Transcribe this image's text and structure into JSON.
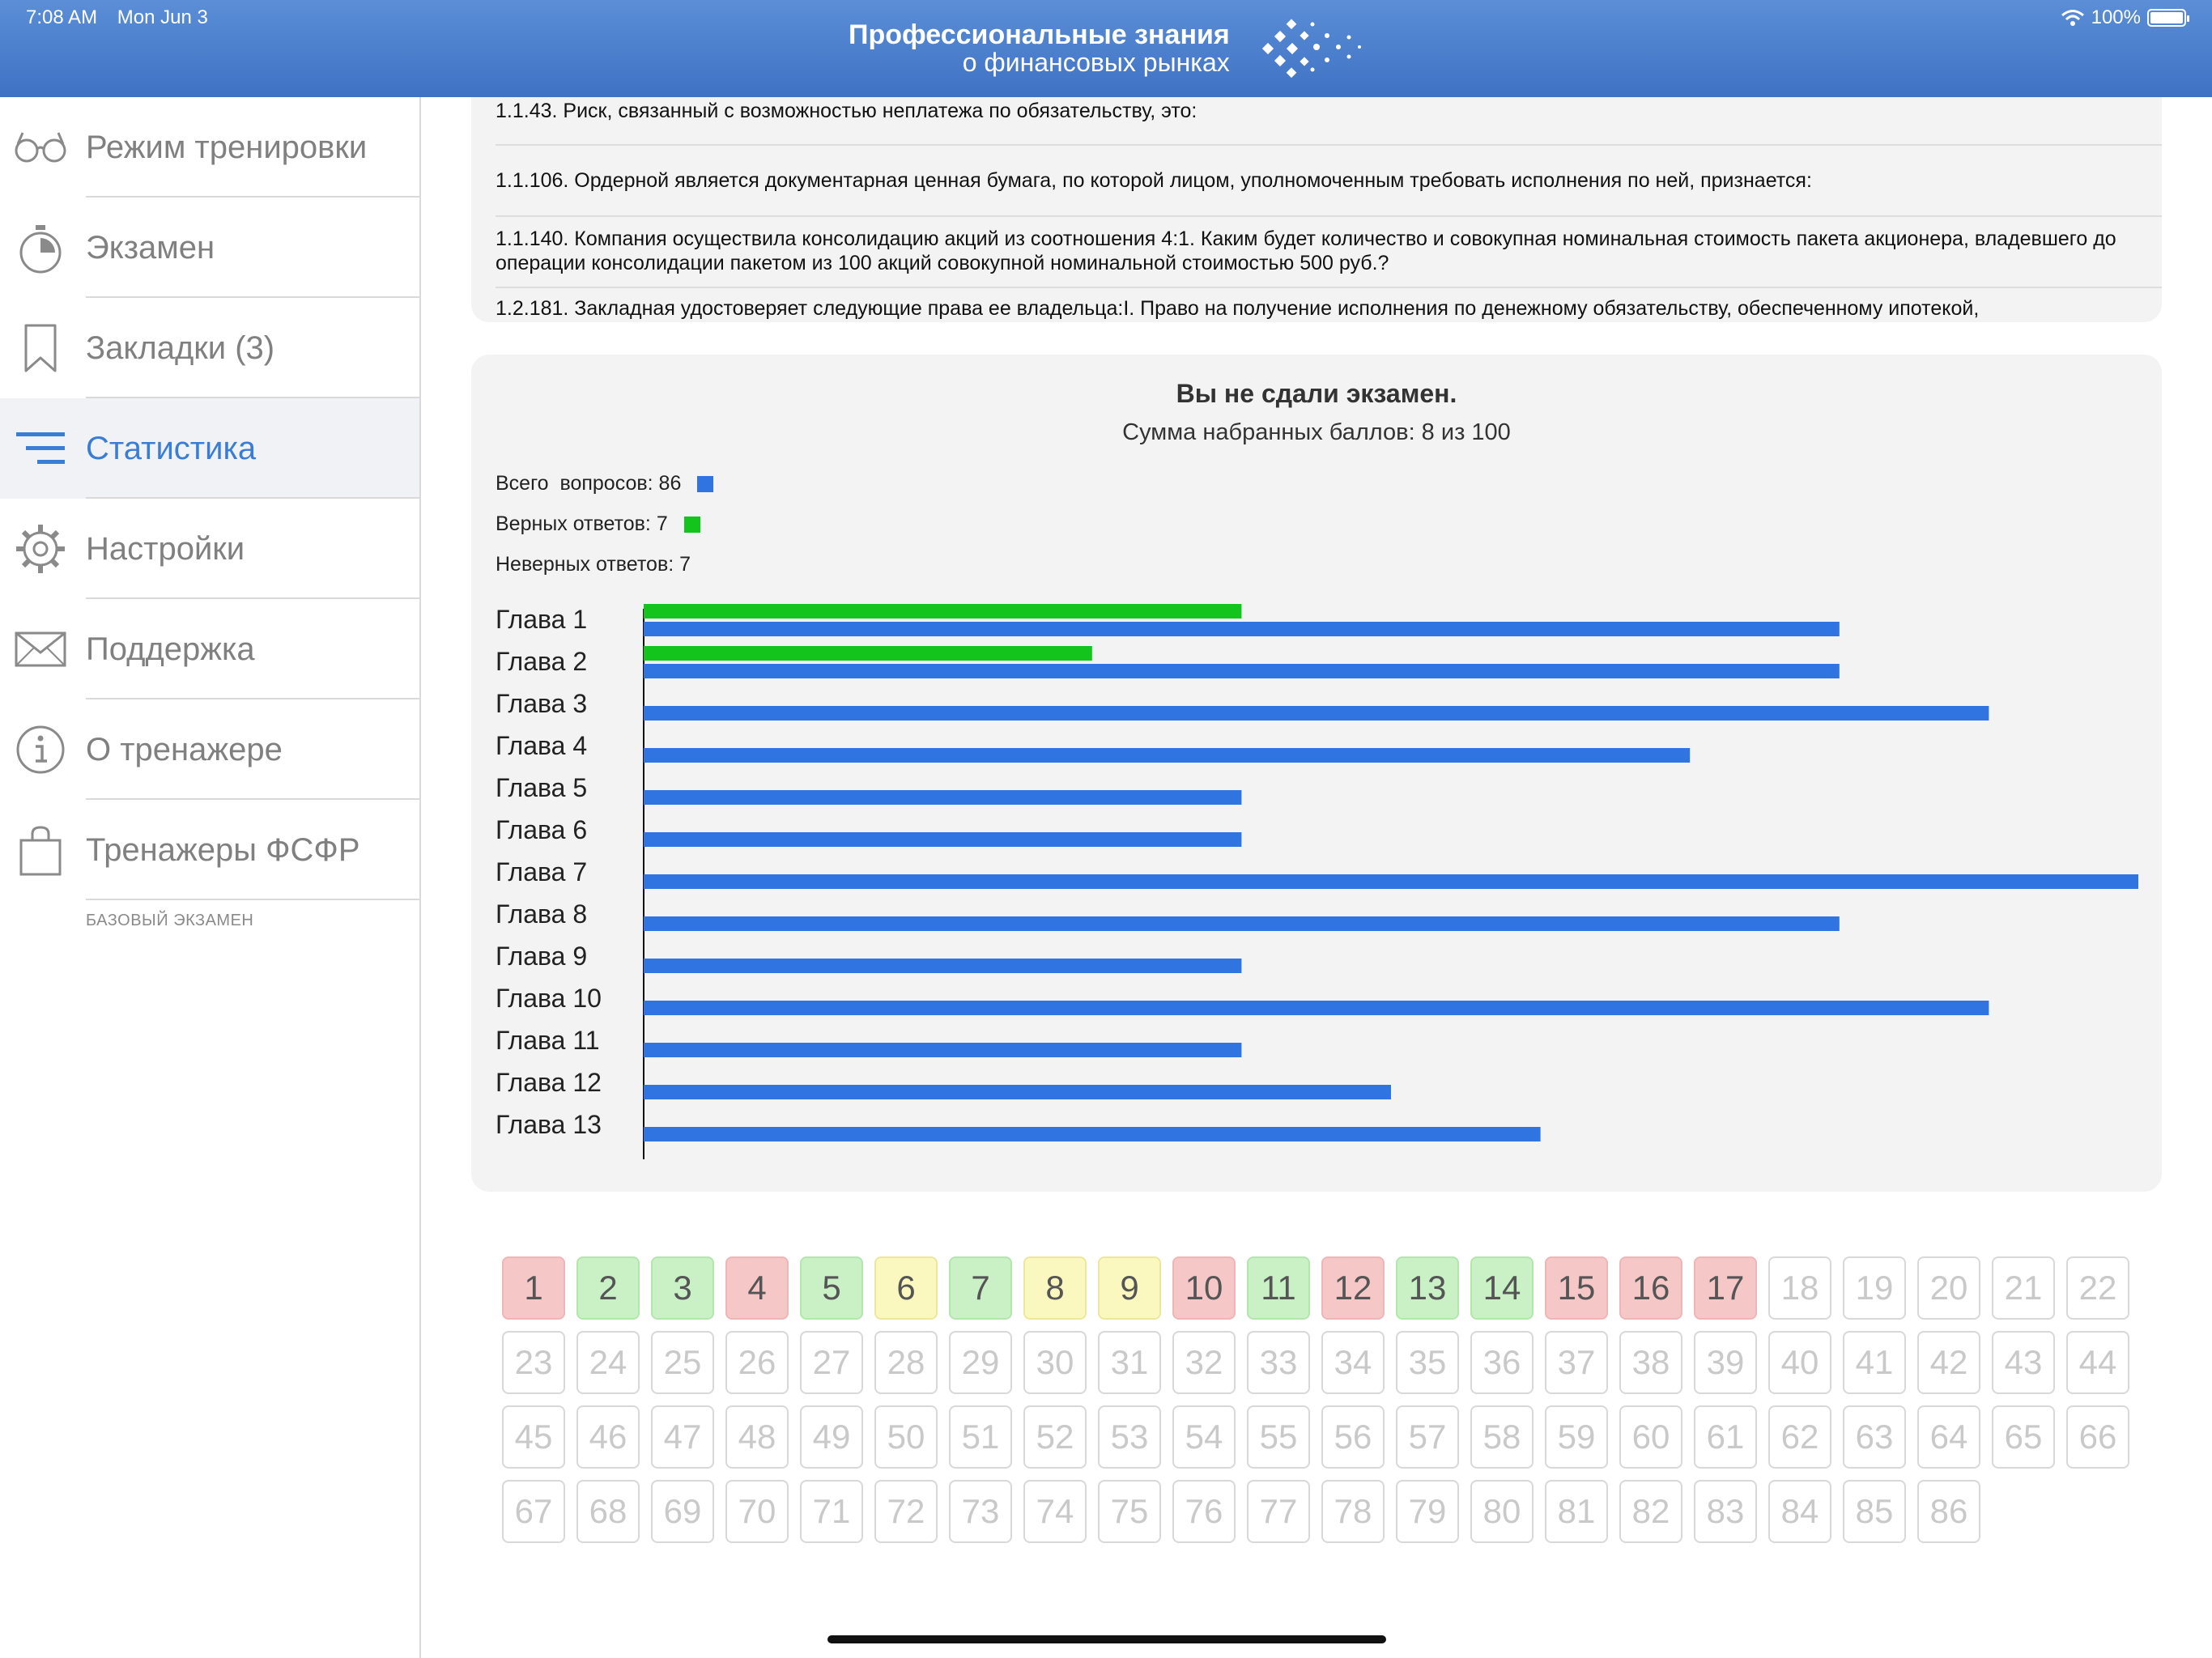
{
  "status_bar": {
    "time": "7:08 AM",
    "date": "Mon Jun 3",
    "battery": "100%"
  },
  "header": {
    "logo_line1": "Профессиональные знания",
    "logo_line2": "о финансовых рынках"
  },
  "sidebar": {
    "items": [
      {
        "label": "Режим тренировки",
        "icon": "glasses-icon",
        "active": false
      },
      {
        "label": "Экзамен",
        "icon": "stopwatch-icon",
        "active": false
      },
      {
        "label": "Закладки (3)",
        "icon": "bookmark-icon",
        "active": false
      },
      {
        "label": "Статистика",
        "icon": "stats-list-icon",
        "active": true
      },
      {
        "label": "Настройки",
        "icon": "gear-icon",
        "active": false
      },
      {
        "label": "Поддержка",
        "icon": "envelope-icon",
        "active": false
      },
      {
        "label": "О тренажере",
        "icon": "info-icon",
        "active": false
      },
      {
        "label": "Тренажеры ФСФР",
        "icon": "shopping-bag-icon",
        "active": false
      }
    ],
    "caption": "БАЗОВЫЙ ЭКЗАМЕН",
    "accent_color": "#3a7dd6"
  },
  "questions": [
    "1.1.43. Риск, связанный с возможностью неплатежа по обязательству, это:",
    "1.1.106. Ордерной является документарная ценная бумага, по которой лицом, уполномоченным требовать исполнения по ней, признается:",
    "1.1.140. Компания осуществила консолидацию акций из соотношения 4:1. Каким будет количество и совокупная номинальная стоимость пакета акционера, владевшего до операции консолидации пакетом из 100 акций совокупной номинальной стоимостью 500 руб.?",
    "1.2.181. Закладная удостоверяет следующие права ее владельца:I. Право на получение исполнения по денежному обязательству, обеспеченному ипотекой,"
  ],
  "result": {
    "title": "Вы не сдали экзамен.",
    "subtitle": "Сумма набранных баллов: 8 из 100",
    "legend": [
      {
        "label": "Всего  вопросов: 86",
        "color": "#2f74e0"
      },
      {
        "label": "Верных ответов: 7",
        "color": "#12c41c"
      },
      {
        "label": "Неверных ответов: 7",
        "color": null
      }
    ]
  },
  "chart_data": {
    "type": "bar",
    "orientation": "horizontal",
    "categories": [
      "Глава 1",
      "Глава 2",
      "Глава 3",
      "Глава 4",
      "Глава 5",
      "Глава 6",
      "Глава 7",
      "Глава 8",
      "Глава 9",
      "Глава 10",
      "Глава 11",
      "Глава 12",
      "Глава 13"
    ],
    "series": [
      {
        "values": [
          4,
          3,
          0,
          0,
          0,
          0,
          0,
          0,
          0,
          0,
          0,
          0,
          0
        ],
        "color": "#12c41c"
      },
      {
        "values": [
          8,
          8,
          9,
          7,
          4,
          4,
          10,
          8,
          4,
          9,
          4,
          5,
          6
        ],
        "color": "#2f74e0"
      }
    ],
    "xlim": [
      0,
      10
    ]
  },
  "answer_grid": {
    "total": 86,
    "statuses": [
      "red",
      "green",
      "green",
      "red",
      "green",
      "yellow",
      "green",
      "yellow",
      "yellow",
      "red",
      "green",
      "red",
      "green",
      "green",
      "red",
      "red",
      "red"
    ]
  }
}
